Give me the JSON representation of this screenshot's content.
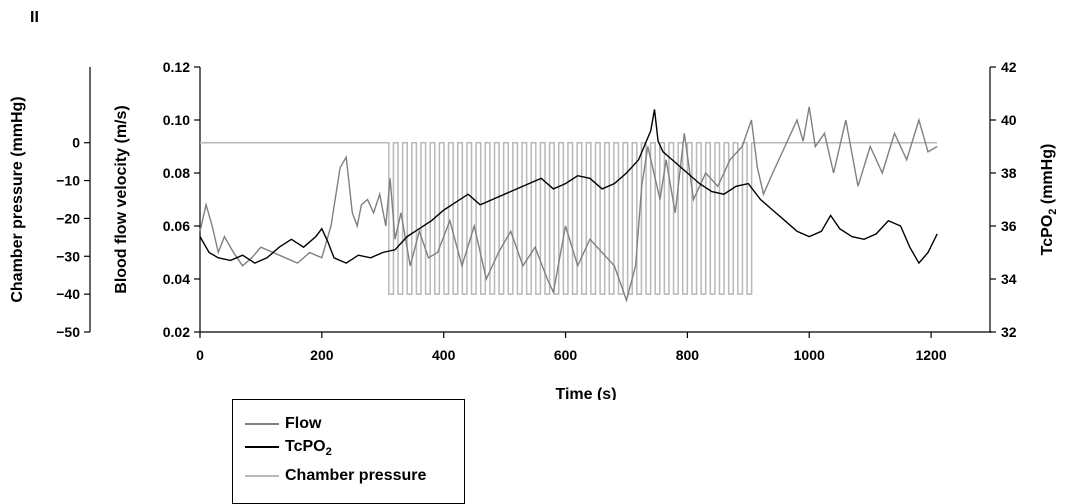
{
  "panel_label": "II",
  "chart_data": {
    "type": "line",
    "xlabel": "Time (s)",
    "ylabel_left_outer": "Chamber pressure (mmHg)",
    "ylabel_left_inner": "Blood flow velocity (m/s)",
    "ylabel_right": "TcPO",
    "ylabel_right_sub": "2",
    "ylabel_right_suffix": " (mmHg)",
    "xlim": [
      0,
      1300
    ],
    "xticks": [
      "0",
      "200",
      "400",
      "600",
      "800",
      "1000",
      "1200"
    ],
    "xtick_values": [
      0,
      200,
      400,
      600,
      800,
      1000,
      1200
    ],
    "ylim_pressure": [
      -50,
      20
    ],
    "yticks_pressure": [
      "0",
      "−10",
      "−20",
      "−30",
      "−40",
      "−50"
    ],
    "ytick_values_pressure": [
      0,
      -10,
      -20,
      -30,
      -40,
      -50
    ],
    "ylim_flow": [
      0.02,
      0.12
    ],
    "yticks_flow": [
      "0.12",
      "0.10",
      "0.08",
      "0.06",
      "0.04",
      "0.02"
    ],
    "ytick_values_flow": [
      0.12,
      0.1,
      0.08,
      0.06,
      0.04,
      0.02
    ],
    "ylim_tcpo2": [
      32,
      42
    ],
    "yticks_tcpo2": [
      "42",
      "40",
      "38",
      "36",
      "34",
      "32"
    ],
    "ytick_values_tcpo2": [
      42,
      40,
      38,
      36,
      34,
      32
    ],
    "colors": {
      "Flow": "#808080",
      "TcPO2": "#000000",
      "Chamber pressure": "#b8b8b8"
    },
    "series": [
      {
        "key": "flow",
        "axis": "flow",
        "x": [
          0,
          10,
          20,
          30,
          40,
          55,
          70,
          85,
          100,
          120,
          140,
          160,
          180,
          200,
          215,
          230,
          240,
          250,
          258,
          265,
          275,
          285,
          295,
          305,
          312,
          320,
          330,
          345,
          360,
          375,
          390,
          410,
          430,
          450,
          470,
          490,
          510,
          530,
          550,
          570,
          580,
          600,
          620,
          640,
          660,
          680,
          700,
          715,
          725,
          735,
          745,
          755,
          765,
          780,
          795,
          810,
          830,
          850,
          870,
          890,
          905,
          915,
          925,
          940,
          960,
          980,
          990,
          1000,
          1010,
          1025,
          1040,
          1060,
          1080,
          1100,
          1120,
          1140,
          1160,
          1180,
          1195,
          1210
        ],
        "y": [
          0.058,
          0.068,
          0.06,
          0.05,
          0.056,
          0.05,
          0.045,
          0.048,
          0.052,
          0.05,
          0.048,
          0.046,
          0.05,
          0.048,
          0.06,
          0.082,
          0.086,
          0.065,
          0.06,
          0.068,
          0.07,
          0.065,
          0.072,
          0.06,
          0.078,
          0.055,
          0.065,
          0.045,
          0.058,
          0.048,
          0.05,
          0.062,
          0.045,
          0.06,
          0.04,
          0.05,
          0.058,
          0.045,
          0.052,
          0.04,
          0.035,
          0.06,
          0.045,
          0.055,
          0.05,
          0.045,
          0.032,
          0.045,
          0.075,
          0.09,
          0.08,
          0.07,
          0.085,
          0.065,
          0.095,
          0.07,
          0.08,
          0.075,
          0.085,
          0.09,
          0.1,
          0.082,
          0.072,
          0.08,
          0.09,
          0.1,
          0.092,
          0.105,
          0.09,
          0.095,
          0.08,
          0.1,
          0.075,
          0.09,
          0.08,
          0.095,
          0.085,
          0.1,
          0.088,
          0.09
        ]
      },
      {
        "key": "tcpo2",
        "axis": "tcpo2",
        "x": [
          0,
          15,
          30,
          50,
          70,
          90,
          110,
          130,
          150,
          170,
          190,
          200,
          210,
          220,
          240,
          260,
          280,
          300,
          320,
          340,
          360,
          380,
          400,
          420,
          440,
          460,
          480,
          500,
          520,
          540,
          560,
          580,
          600,
          620,
          640,
          660,
          680,
          700,
          720,
          740,
          746,
          752,
          760,
          780,
          800,
          820,
          840,
          860,
          880,
          900,
          920,
          940,
          960,
          980,
          1000,
          1020,
          1035,
          1050,
          1070,
          1090,
          1110,
          1130,
          1150,
          1165,
          1180,
          1195,
          1210
        ],
        "y": [
          35.6,
          35.0,
          34.8,
          34.7,
          34.9,
          34.6,
          34.8,
          35.2,
          35.5,
          35.2,
          35.6,
          35.9,
          35.4,
          34.8,
          34.6,
          34.9,
          34.8,
          35.0,
          35.1,
          35.6,
          35.9,
          36.2,
          36.6,
          36.9,
          37.2,
          36.8,
          37.0,
          37.2,
          37.4,
          37.6,
          37.8,
          37.4,
          37.6,
          37.9,
          37.8,
          37.4,
          37.6,
          38.0,
          38.5,
          39.6,
          40.4,
          39.2,
          38.8,
          38.4,
          38.0,
          37.6,
          37.3,
          37.2,
          37.5,
          37.6,
          37.0,
          36.6,
          36.2,
          35.8,
          35.6,
          35.8,
          36.4,
          35.9,
          35.6,
          35.5,
          35.7,
          36.2,
          36.0,
          35.2,
          34.6,
          35.0,
          35.7
        ]
      }
    ],
    "pressure_high": 0,
    "pressure_low": -40,
    "pressure_cycle_start": 310,
    "pressure_cycle_end": 913,
    "pressure_cycle_count": 40,
    "pressure_end": 1210,
    "legend": [
      {
        "label": "Flow",
        "sub": "",
        "color": "#808080"
      },
      {
        "label": "TcPO",
        "sub": "2",
        "color": "#000000"
      },
      {
        "label": "Chamber pressure",
        "sub": "",
        "color": "#b8b8b8"
      }
    ]
  }
}
